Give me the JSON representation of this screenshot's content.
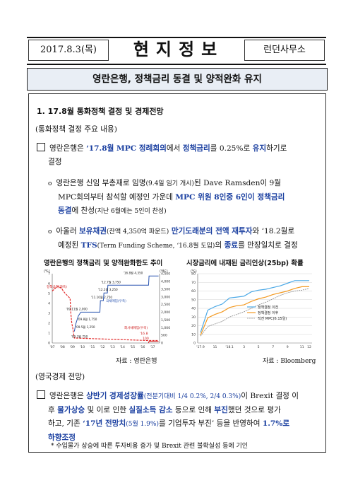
{
  "header": {
    "date": "2017.8.3(목)",
    "title": "현지정보",
    "office": "런던사무소"
  },
  "subject": "영란은행, 정책금리 동결 및 양적완화 유지",
  "section1": {
    "heading": "1. 17.8월 통화정책 결정 및 경제전망",
    "sub": "(통화정책 결정 주요 내용)",
    "p1": {
      "a": "영란은행은 ",
      "b": "‘17.8월 MPC 정례회의",
      "c": "에서 ",
      "d": "정책금리",
      "e": "를 0.25%로 ",
      "f": "유지",
      "g": "하기로",
      "line2": "결정"
    },
    "p2": {
      "a": "영란은행 신임 부총재로 임명",
      "b": "(9.4일 임기 개시)",
      "c": "된 Dave Ramsden이 9월",
      "d": "MPC회의부터 참석할 예정인 가운데 ",
      "e": "MPC 위원 8인중 6인이 정책금리",
      "f": "동결",
      "g": "에 찬성",
      "h": "(지난 6월에는 5인이 찬성)"
    },
    "p3": {
      "a": "아울러 ",
      "b": "보유채권",
      "c": "(잔액 4,350억 파운드)",
      "d": " 만기도래분의 전액 재투자",
      "e": "와 ‘18.2월로",
      "f": "예정된 ",
      "g": "TFS",
      "h": "(Term Funding Scheme, ‘16.8월 도입)",
      "i": "의 ",
      "j": "종료",
      "k": "를 만장일치로 결정"
    }
  },
  "chart_left": {
    "title": "영란은행의 정책금리 및 양적완화한도 추이",
    "unit_left": "(%)",
    "unit_right": "(억£)",
    "source": "자료 : 영란은행",
    "labels": {
      "policy_rate": "정책금리(좌축)",
      "qe": "국채매입(우축)",
      "corp": "회사채매입(우축)",
      "corp_date": "'16.8",
      "corp_val": "100",
      "ann": [
        "'16.8월 4,350",
        "'12.7월 3,750",
        "'12.2월 3,250",
        "'11.10월 2,750",
        "'09.11월 2,000",
        "'09.8월 1,750",
        "'09.5월 1,250",
        "'09.3월 750"
      ]
    }
  },
  "chart_right": {
    "title": "시장금리에 내재된 금리인상(25bp) 확률",
    "unit": "(%)",
    "source": "자료 : Bloomberg",
    "legend": [
      "정책결정 이전",
      "정책결정 이후",
      "직전 MPC(6.15일)"
    ]
  },
  "chart_data": [
    {
      "type": "line",
      "title": "영란은행의 정책금리 및 양적완화한도 추이",
      "x": [
        "'07",
        "'08",
        "'09",
        "'10",
        "'11",
        "'12",
        "'13",
        "'14",
        "'15",
        "'16",
        "'17"
      ],
      "ylim_left": [
        0,
        7
      ],
      "ylim_right": [
        0,
        4500
      ],
      "series": [
        {
          "name": "정책금리(좌축)",
          "points": [
            [
              2007.0,
              5.25
            ],
            [
              2007.55,
              5.75
            ],
            [
              2007.95,
              5.5
            ],
            [
              2008.1,
              5.25
            ],
            [
              2008.3,
              5.0
            ],
            [
              2008.78,
              4.5
            ],
            [
              2008.85,
              3.0
            ],
            [
              2008.95,
              2.0
            ],
            [
              2009.05,
              1.5
            ],
            [
              2009.12,
              1.0
            ],
            [
              2009.2,
              0.5
            ],
            [
              2016.6,
              0.25
            ],
            [
              2017.6,
              0.25
            ]
          ]
        },
        {
          "name": "국채매입(우축)",
          "points": [
            [
              2009.2,
              750
            ],
            [
              2009.35,
              1250
            ],
            [
              2009.6,
              1750
            ],
            [
              2009.85,
              2000
            ],
            [
              2011.75,
              2000
            ],
            [
              2011.8,
              2750
            ],
            [
              2012.1,
              2750
            ],
            [
              2012.15,
              3250
            ],
            [
              2012.5,
              3250
            ],
            [
              2012.55,
              3750
            ],
            [
              2016.6,
              3750
            ],
            [
              2016.65,
              4350
            ],
            [
              2017.6,
              4350
            ]
          ]
        },
        {
          "name": "회사채매입(우축)",
          "points": [
            [
              2016.6,
              0
            ],
            [
              2016.65,
              100
            ],
            [
              2017.6,
              100
            ]
          ]
        }
      ]
    },
    {
      "type": "line",
      "title": "시장금리에 내재된 금리인상(25bp) 확률",
      "x": [
        "'17.9",
        "10",
        "11",
        "12",
        "'18.1",
        "2",
        "3",
        "4",
        "5",
        "6",
        "7",
        "8",
        "9",
        "10",
        "11",
        "12"
      ],
      "ylim": [
        0,
        80
      ],
      "series": [
        {
          "name": "정책결정 이전",
          "values": [
            12,
            38,
            42,
            45,
            52,
            53,
            54,
            59,
            61,
            62,
            64,
            66,
            69,
            72,
            72,
            72
          ]
        },
        {
          "name": "정책결정 이후",
          "values": [
            9,
            29,
            33,
            36,
            41,
            43,
            44,
            48,
            51,
            53,
            56,
            58,
            60,
            63,
            65,
            65
          ]
        },
        {
          "name": "직전 MPC(6.15일)",
          "values": [
            8,
            19,
            22,
            25,
            30,
            33,
            36,
            40,
            44,
            47,
            51,
            55,
            58,
            60,
            61,
            63
          ]
        }
      ]
    }
  ],
  "section2": {
    "sub": "(영국경제 전망)",
    "p1": {
      "a": "영란은행은 ",
      "b": "상반기 경제성장률",
      "c": "(전분기대비 1/4 0.2%, 2/4 0.3%)",
      "d": "이 Brexit 결정 이",
      "e": "후 ",
      "f": "물가상승",
      "g": " 및 이로 인한 ",
      "h": "실질소득 감소",
      "i": " 등으로 인해 ",
      "j": "부진",
      "k": "했던 것으로 평가",
      "l": "하고, 기존 ",
      "m": "‘17년 전망치",
      "n": "(5월 1.9%)",
      "o": "를 기업투자 부진’ 등을 반영하여 ",
      "p": "1.7%로",
      "q": "하향조정"
    },
    "footnote": "* 수입물가 상승에 따른 투자비용 증가 및 Brexit 관련 불확실성 등에 기인"
  }
}
